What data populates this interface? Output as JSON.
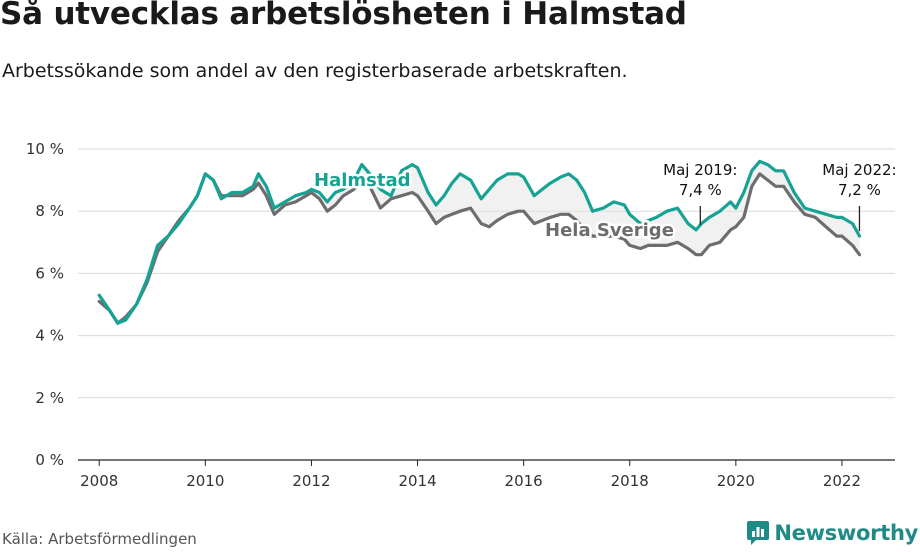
{
  "title": "Så utvecklas arbetslösheten i Halmstad",
  "subtitle": "Arbetssökande som andel av den registerbaserade arbetskraften.",
  "source": "Källa: Arbetsförmedlingen",
  "brand": "Newsworthy",
  "colors": {
    "halmstad": "#16a394",
    "sverige": "#6d6d70",
    "brand": "#1f8a86",
    "grid": "#d9d9d9",
    "fill": "#e6e6e6"
  },
  "chart_data": {
    "type": "line",
    "title": "Så utvecklas arbetslösheten i Halmstad",
    "xlabel": "",
    "ylabel": "",
    "xlim": [
      2007.6,
      2023.0
    ],
    "ylim": [
      0,
      10
    ],
    "xticks": [
      "2008",
      "2010",
      "2012",
      "2014",
      "2016",
      "2018",
      "2020",
      "2022"
    ],
    "yticks": [
      "0 %",
      "2 %",
      "4 %",
      "6 %",
      "8 %",
      "10 %"
    ],
    "series": [
      {
        "name": "Halmstad",
        "label": "Halmstad",
        "x": [
          2008.0,
          2008.2,
          2008.35,
          2008.5,
          2008.7,
          2008.9,
          2009.1,
          2009.3,
          2009.5,
          2009.7,
          2009.85,
          2010.0,
          2010.15,
          2010.3,
          2010.5,
          2010.7,
          2010.9,
          2011.0,
          2011.15,
          2011.3,
          2011.5,
          2011.7,
          2011.9,
          2012.0,
          2012.15,
          2012.3,
          2012.45,
          2012.6,
          2012.8,
          2012.95,
          2013.1,
          2013.3,
          2013.5,
          2013.7,
          2013.9,
          2014.0,
          2014.2,
          2014.35,
          2014.5,
          2014.65,
          2014.8,
          2015.0,
          2015.2,
          2015.35,
          2015.5,
          2015.7,
          2015.9,
          2016.0,
          2016.2,
          2016.35,
          2016.5,
          2016.7,
          2016.85,
          2017.0,
          2017.15,
          2017.3,
          2017.5,
          2017.7,
          2017.9,
          2018.0,
          2018.2,
          2018.35,
          2018.5,
          2018.7,
          2018.9,
          2019.1,
          2019.25,
          2019.35,
          2019.5,
          2019.7,
          2019.9,
          2020.0,
          2020.15,
          2020.3,
          2020.45,
          2020.6,
          2020.75,
          2020.9,
          2021.1,
          2021.3,
          2021.5,
          2021.7,
          2021.9,
          2022.0,
          2022.2,
          2022.33
        ],
        "values": [
          5.3,
          4.8,
          4.4,
          4.5,
          5.0,
          5.8,
          6.9,
          7.2,
          7.6,
          8.1,
          8.5,
          9.2,
          9.0,
          8.4,
          8.6,
          8.6,
          8.8,
          9.2,
          8.8,
          8.1,
          8.3,
          8.5,
          8.6,
          8.7,
          8.6,
          8.3,
          8.6,
          8.7,
          9.0,
          9.5,
          9.2,
          8.7,
          8.5,
          9.3,
          9.5,
          9.4,
          8.6,
          8.2,
          8.5,
          8.9,
          9.2,
          9.0,
          8.4,
          8.7,
          9.0,
          9.2,
          9.2,
          9.1,
          8.5,
          8.7,
          8.9,
          9.1,
          9.2,
          9.0,
          8.6,
          8.0,
          8.1,
          8.3,
          8.2,
          7.9,
          7.6,
          7.7,
          7.8,
          8.0,
          8.1,
          7.6,
          7.4,
          7.6,
          7.8,
          8.0,
          8.3,
          8.1,
          8.6,
          9.3,
          9.6,
          9.5,
          9.3,
          9.3,
          8.6,
          8.1,
          8.0,
          7.9,
          7.8,
          7.8,
          7.6,
          7.2
        ]
      },
      {
        "name": "Hela Sverige",
        "label": "Hela Sverige",
        "x": [
          2008.0,
          2008.2,
          2008.35,
          2008.5,
          2008.7,
          2008.9,
          2009.1,
          2009.3,
          2009.5,
          2009.7,
          2009.85,
          2010.0,
          2010.15,
          2010.3,
          2010.5,
          2010.7,
          2010.9,
          2011.0,
          2011.15,
          2011.3,
          2011.5,
          2011.7,
          2011.9,
          2012.0,
          2012.15,
          2012.3,
          2012.45,
          2012.6,
          2012.8,
          2012.95,
          2013.1,
          2013.3,
          2013.5,
          2013.7,
          2013.9,
          2014.0,
          2014.2,
          2014.35,
          2014.5,
          2014.65,
          2014.8,
          2015.0,
          2015.2,
          2015.35,
          2015.5,
          2015.7,
          2015.9,
          2016.0,
          2016.2,
          2016.35,
          2016.5,
          2016.7,
          2016.85,
          2017.0,
          2017.15,
          2017.3,
          2017.5,
          2017.7,
          2017.9,
          2018.0,
          2018.2,
          2018.35,
          2018.5,
          2018.7,
          2018.9,
          2019.1,
          2019.25,
          2019.35,
          2019.5,
          2019.7,
          2019.9,
          2020.0,
          2020.15,
          2020.3,
          2020.45,
          2020.6,
          2020.75,
          2020.9,
          2021.1,
          2021.3,
          2021.5,
          2021.7,
          2021.9,
          2022.0,
          2022.2,
          2022.33
        ],
        "values": [
          5.1,
          4.8,
          4.4,
          4.6,
          5.0,
          5.7,
          6.7,
          7.2,
          7.7,
          8.1,
          8.5,
          9.2,
          9.0,
          8.5,
          8.5,
          8.5,
          8.7,
          8.9,
          8.5,
          7.9,
          8.2,
          8.3,
          8.5,
          8.6,
          8.4,
          8.0,
          8.2,
          8.5,
          8.7,
          9.0,
          8.8,
          8.1,
          8.4,
          8.5,
          8.6,
          8.5,
          8.0,
          7.6,
          7.8,
          7.9,
          8.0,
          8.1,
          7.6,
          7.5,
          7.7,
          7.9,
          8.0,
          8.0,
          7.6,
          7.7,
          7.8,
          7.9,
          7.9,
          7.7,
          7.4,
          7.2,
          7.2,
          7.2,
          7.1,
          6.9,
          6.8,
          6.9,
          6.9,
          6.9,
          7.0,
          6.8,
          6.6,
          6.6,
          6.9,
          7.0,
          7.4,
          7.5,
          7.8,
          8.8,
          9.2,
          9.0,
          8.8,
          8.8,
          8.3,
          7.9,
          7.8,
          7.5,
          7.2,
          7.2,
          6.9,
          6.6
        ]
      }
    ],
    "annotations": [
      {
        "id": "maj2019",
        "line1": "Maj 2019:",
        "line2": "7,4 %",
        "x": 2019.33,
        "y": 7.4
      },
      {
        "id": "maj2022",
        "line1": "Maj 2022:",
        "line2": "7,2 %",
        "x": 2022.33,
        "y": 7.2
      }
    ]
  }
}
